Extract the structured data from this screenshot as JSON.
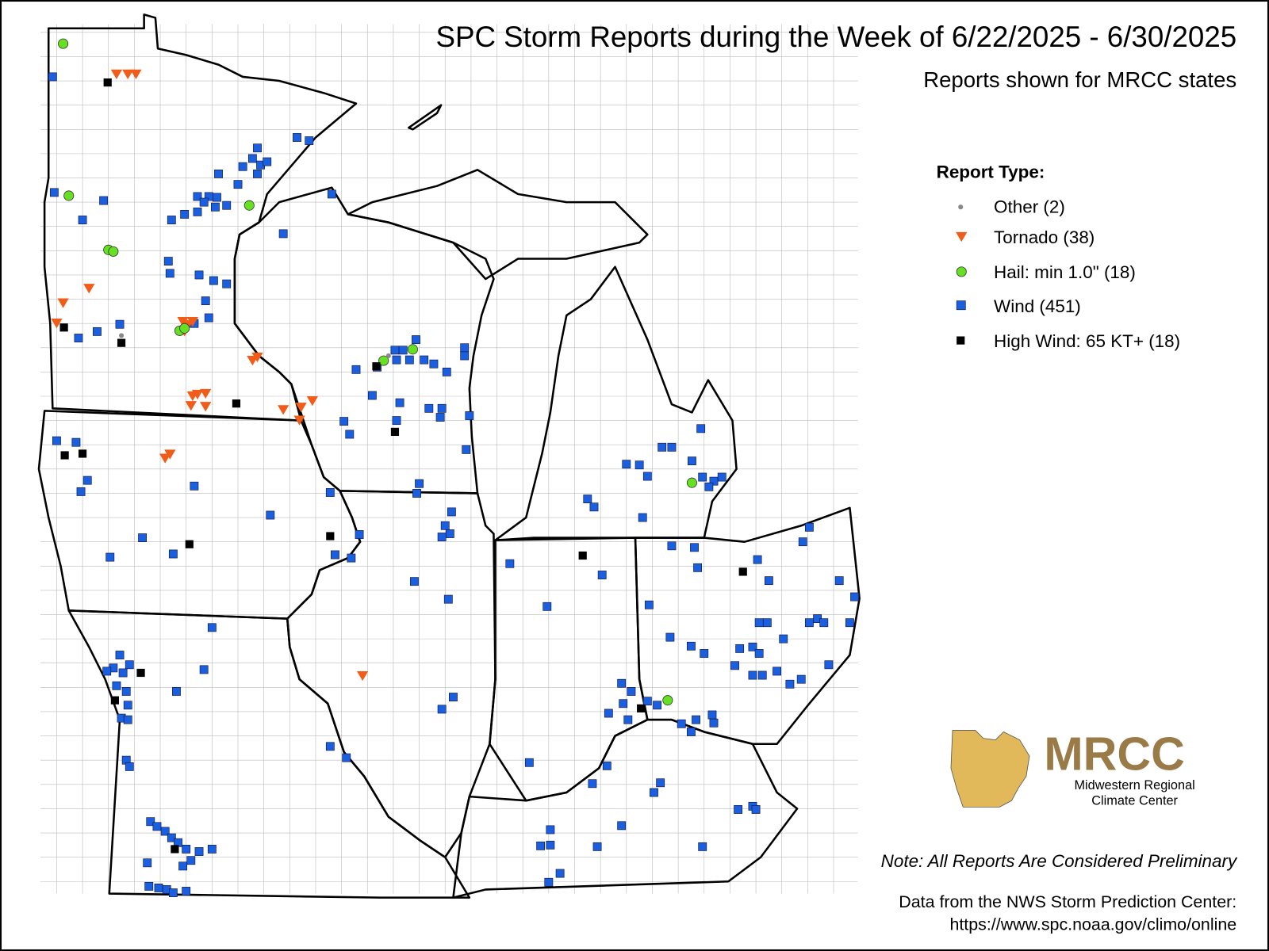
{
  "header": {
    "title": "SPC Storm Reports during the Week of 6/22/2025 - 6/30/2025",
    "subtitle": "Reports shown for MRCC states"
  },
  "legend": {
    "title": "Report Type:",
    "items": [
      "Other (2)",
      "Tornado (38)",
      "Hail: min 1.0\" (18)",
      "Wind (451)",
      "High Wind: 65 KT+ (18)"
    ]
  },
  "logo": {
    "name": "MRCC",
    "lines": [
      "Midwestern Regional",
      "Climate Center"
    ]
  },
  "footer": {
    "note": "Note: All Reports Are Considered Preliminary",
    "source": [
      "Data from the NWS Storm Prediction Center:",
      "https://www.spc.noaa.gov/climo/online"
    ]
  }
}
